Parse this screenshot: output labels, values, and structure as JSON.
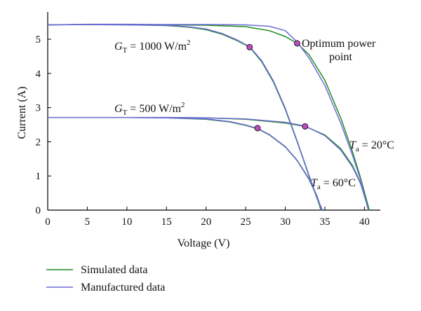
{
  "chart_data": {
    "type": "line",
    "xlabel": "Voltage (V)",
    "ylabel": "Current (A)",
    "xlim": [
      0,
      42
    ],
    "ylim": [
      0,
      5.8
    ],
    "x_ticks": [
      0,
      5,
      10,
      15,
      20,
      25,
      30,
      35,
      40
    ],
    "y_ticks": [
      0,
      1,
      2,
      3,
      4,
      5
    ],
    "grid": false,
    "legend_position": "bottom-left",
    "series": [
      {
        "name": "Simulated data",
        "color": "#1e8c1e",
        "curves": [
          {
            "id": "g1000-t60",
            "points": [
              [
                0,
                5.42
              ],
              [
                5,
                5.43
              ],
              [
                10,
                5.42
              ],
              [
                15,
                5.4
              ],
              [
                18,
                5.35
              ],
              [
                20,
                5.28
              ],
              [
                22,
                5.15
              ],
              [
                24,
                4.95
              ],
              [
                25.5,
                4.77
              ],
              [
                27,
                4.35
              ],
              [
                28.5,
                3.75
              ],
              [
                30,
                2.95
              ],
              [
                31.5,
                2.0
              ],
              [
                33,
                1.0
              ],
              [
                34,
                0.35
              ],
              [
                34.6,
                0
              ]
            ]
          },
          {
            "id": "g1000-t20",
            "points": [
              [
                0,
                5.42
              ],
              [
                5,
                5.43
              ],
              [
                10,
                5.43
              ],
              [
                15,
                5.42
              ],
              [
                20,
                5.41
              ],
              [
                25,
                5.37
              ],
              [
                28,
                5.25
              ],
              [
                30,
                5.08
              ],
              [
                31.5,
                4.88
              ],
              [
                33,
                4.55
              ],
              [
                35,
                3.8
              ],
              [
                37,
                2.7
              ],
              [
                38.5,
                1.7
              ],
              [
                39.5,
                0.95
              ],
              [
                40.2,
                0.35
              ],
              [
                40.6,
                0
              ]
            ]
          },
          {
            "id": "g500-t60",
            "points": [
              [
                0,
                2.71
              ],
              [
                5,
                2.71
              ],
              [
                10,
                2.71
              ],
              [
                15,
                2.7
              ],
              [
                20,
                2.66
              ],
              [
                23,
                2.58
              ],
              [
                25,
                2.48
              ],
              [
                26.5,
                2.38
              ],
              [
                28,
                2.2
              ],
              [
                30,
                1.85
              ],
              [
                31.5,
                1.45
              ],
              [
                33,
                0.9
              ],
              [
                34,
                0.4
              ],
              [
                34.5,
                0
              ]
            ]
          },
          {
            "id": "g500-t20",
            "points": [
              [
                0,
                2.71
              ],
              [
                5,
                2.71
              ],
              [
                10,
                2.71
              ],
              [
                15,
                2.71
              ],
              [
                20,
                2.7
              ],
              [
                25,
                2.66
              ],
              [
                30,
                2.55
              ],
              [
                32.5,
                2.45
              ],
              [
                35,
                2.2
              ],
              [
                37,
                1.8
              ],
              [
                38.5,
                1.3
              ],
              [
                39.5,
                0.8
              ],
              [
                40.3,
                0.25
              ],
              [
                40.6,
                0
              ]
            ]
          }
        ]
      },
      {
        "name": "Manufactured data",
        "color": "#6b6bd6",
        "curves": [
          {
            "id": "g1000-t60",
            "points": [
              [
                0,
                5.42
              ],
              [
                5,
                5.43
              ],
              [
                10,
                5.42
              ],
              [
                15,
                5.41
              ],
              [
                18,
                5.36
              ],
              [
                20,
                5.3
              ],
              [
                22,
                5.17
              ],
              [
                24,
                4.97
              ],
              [
                25.5,
                4.78
              ],
              [
                27,
                4.38
              ],
              [
                28.5,
                3.78
              ],
              [
                30,
                2.98
              ],
              [
                31.5,
                2.02
              ],
              [
                33,
                1.02
              ],
              [
                34,
                0.37
              ],
              [
                34.7,
                0
              ]
            ]
          },
          {
            "id": "g1000-t20",
            "points": [
              [
                0,
                5.42
              ],
              [
                5,
                5.44
              ],
              [
                10,
                5.44
              ],
              [
                15,
                5.43
              ],
              [
                20,
                5.43
              ],
              [
                25,
                5.42
              ],
              [
                28,
                5.38
              ],
              [
                30,
                5.25
              ],
              [
                31.5,
                4.92
              ],
              [
                33,
                4.45
              ],
              [
                35,
                3.65
              ],
              [
                37,
                2.55
              ],
              [
                38.5,
                1.6
              ],
              [
                39.5,
                0.9
              ],
              [
                40.1,
                0.35
              ],
              [
                40.5,
                0
              ]
            ]
          },
          {
            "id": "g500-t60",
            "points": [
              [
                0,
                2.71
              ],
              [
                5,
                2.71
              ],
              [
                10,
                2.71
              ],
              [
                15,
                2.7
              ],
              [
                20,
                2.67
              ],
              [
                23,
                2.59
              ],
              [
                25,
                2.49
              ],
              [
                26.5,
                2.39
              ],
              [
                28,
                2.21
              ],
              [
                30,
                1.86
              ],
              [
                31.5,
                1.46
              ],
              [
                33,
                0.92
              ],
              [
                34,
                0.42
              ],
              [
                34.6,
                0
              ]
            ]
          },
          {
            "id": "g500-t20",
            "points": [
              [
                0,
                2.71
              ],
              [
                5,
                2.71
              ],
              [
                10,
                2.71
              ],
              [
                15,
                2.71
              ],
              [
                20,
                2.7
              ],
              [
                25,
                2.67
              ],
              [
                30,
                2.57
              ],
              [
                32.5,
                2.46
              ],
              [
                35,
                2.18
              ],
              [
                37,
                1.76
              ],
              [
                38.5,
                1.26
              ],
              [
                39.5,
                0.78
              ],
              [
                40.2,
                0.25
              ],
              [
                40.5,
                0
              ]
            ]
          }
        ]
      }
    ],
    "markers": [
      {
        "id": "mpp-1000-60",
        "x": 25.5,
        "y": 4.77
      },
      {
        "id": "mpp-1000-20",
        "x": 31.5,
        "y": 4.88
      },
      {
        "id": "mpp-500-60",
        "x": 26.5,
        "y": 2.4
      },
      {
        "id": "mpp-500-20",
        "x": 32.5,
        "y": 2.45
      }
    ],
    "marker_color": "#c04ac0",
    "annotations": {
      "g1000": {
        "prefix": "G",
        "sub": "T",
        "middle": " = 1000 W/m",
        "sup": "2"
      },
      "g500": {
        "prefix": "G",
        "sub": "T",
        "middle": " = 500 W/m",
        "sup": "2"
      },
      "optimum_line1": "Optimum power",
      "optimum_line2": "point",
      "ta20": {
        "prefix": "T",
        "sub": "a",
        "suffix": " = 20°C"
      },
      "ta60": {
        "prefix": "T",
        "sub": "a",
        "suffix": " = 60°C"
      }
    }
  },
  "legend": [
    {
      "label": "Simulated data",
      "color": "#1e8c1e"
    },
    {
      "label": "Manufactured data",
      "color": "#6b6bd6"
    }
  ]
}
